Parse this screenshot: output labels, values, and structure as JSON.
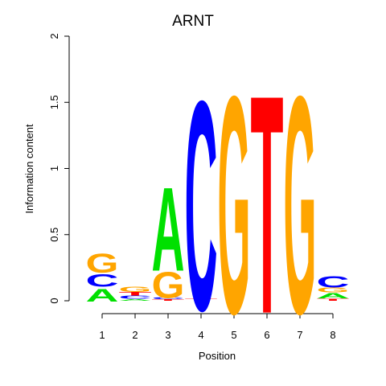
{
  "chart_data": {
    "type": "sequence-logo",
    "title": "ARNT",
    "xlabel": "Position",
    "ylabel": "Information content",
    "ylim": [
      0,
      2
    ],
    "yticks": [
      "0",
      "0.5",
      "1",
      "1.5",
      "2"
    ],
    "categories": [
      "1",
      "2",
      "3",
      "4",
      "5",
      "6",
      "7",
      "8"
    ],
    "colors": {
      "A": "#00e000",
      "C": "#0000ff",
      "G": "#ffa500",
      "T": "#ff0000"
    },
    "positions": [
      {
        "position": "1",
        "stack": [
          {
            "letter": "A",
            "height": 0.11
          },
          {
            "letter": "C",
            "height": 0.11
          },
          {
            "letter": "G",
            "height": 0.17
          }
        ]
      },
      {
        "position": "2",
        "stack": [
          {
            "letter": "A",
            "height": 0.015
          },
          {
            "letter": "C",
            "height": 0.025
          },
          {
            "letter": "T",
            "height": 0.03
          },
          {
            "letter": "G",
            "height": 0.045
          }
        ]
      },
      {
        "position": "3",
        "stack": [
          {
            "letter": "T",
            "height": 0.012
          },
          {
            "letter": "C",
            "height": 0.02
          },
          {
            "letter": "G",
            "height": 0.23
          },
          {
            "letter": "A",
            "height": 0.74
          }
        ]
      },
      {
        "position": "4",
        "stack": [
          {
            "letter": "T",
            "height": 0.02
          },
          {
            "letter": "C",
            "height": 1.85
          }
        ]
      },
      {
        "position": "5",
        "stack": [
          {
            "letter": "G",
            "height": 1.92
          }
        ]
      },
      {
        "position": "6",
        "stack": [
          {
            "letter": "T",
            "height": 1.93
          }
        ]
      },
      {
        "position": "7",
        "stack": [
          {
            "letter": "G",
            "height": 1.92
          }
        ]
      },
      {
        "position": "8",
        "stack": [
          {
            "letter": "T",
            "height": 0.02
          },
          {
            "letter": "A",
            "height": 0.045
          },
          {
            "letter": "G",
            "height": 0.04
          },
          {
            "letter": "C",
            "height": 0.1
          }
        ]
      }
    ]
  }
}
